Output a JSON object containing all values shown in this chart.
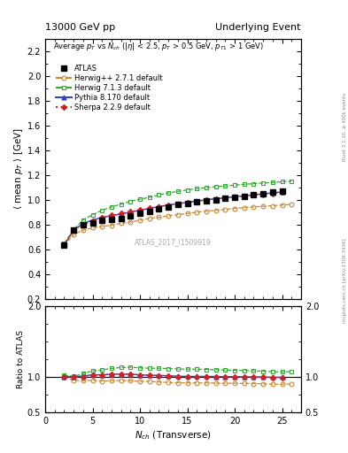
{
  "title_left": "13000 GeV pp",
  "title_right": "Underlying Event",
  "ylabel_main": "$\\langle$ mean $p_T$ $\\rangle$ [GeV]",
  "ylabel_ratio": "Ratio to ATLAS",
  "xlabel": "$N_{ch}$ (Transverse)",
  "right_label1": "Rivet 3.1.10, ≥ 400k events",
  "right_label2": "mcplots.cern.ch [arXiv:1306.3436]",
  "watermark": "ATLAS_2017_I1509919",
  "panel_title": "Average $p_T$ vs $N_{ch}$ ($|\\eta|$ < 2.5, $p_T$ > 0.5 GeV, $p_{T1}$ > 1 GeV)",
  "ylim_main": [
    0.2,
    2.3
  ],
  "ylim_ratio": [
    0.5,
    2.0
  ],
  "xlim": [
    0,
    27
  ],
  "atlas_x": [
    2,
    3,
    4,
    5,
    6,
    7,
    8,
    9,
    10,
    11,
    12,
    13,
    14,
    15,
    16,
    17,
    18,
    19,
    20,
    21,
    22,
    23,
    24,
    25
  ],
  "atlas_y": [
    0.633,
    0.755,
    0.798,
    0.812,
    0.832,
    0.84,
    0.852,
    0.868,
    0.89,
    0.908,
    0.926,
    0.942,
    0.96,
    0.972,
    0.983,
    0.992,
    1.002,
    1.012,
    1.022,
    1.03,
    1.04,
    1.05,
    1.06,
    1.068
  ],
  "herwig271_x": [
    2,
    3,
    4,
    5,
    6,
    7,
    8,
    9,
    10,
    11,
    12,
    13,
    14,
    15,
    16,
    17,
    18,
    19,
    20,
    21,
    22,
    23,
    24,
    25,
    26
  ],
  "herwig271_y": [
    0.633,
    0.72,
    0.755,
    0.775,
    0.785,
    0.795,
    0.81,
    0.82,
    0.835,
    0.85,
    0.86,
    0.87,
    0.88,
    0.89,
    0.9,
    0.908,
    0.915,
    0.922,
    0.93,
    0.937,
    0.942,
    0.948,
    0.952,
    0.958,
    0.963
  ],
  "herwig713_x": [
    2,
    3,
    4,
    5,
    6,
    7,
    8,
    9,
    10,
    11,
    12,
    13,
    14,
    15,
    16,
    17,
    18,
    19,
    20,
    21,
    22,
    23,
    24,
    25,
    26
  ],
  "herwig713_y": [
    0.65,
    0.76,
    0.838,
    0.88,
    0.915,
    0.942,
    0.965,
    0.988,
    1.005,
    1.02,
    1.04,
    1.055,
    1.068,
    1.08,
    1.09,
    1.098,
    1.105,
    1.112,
    1.118,
    1.125,
    1.13,
    1.135,
    1.14,
    1.145,
    1.15
  ],
  "pythia_x": [
    2,
    3,
    4,
    5,
    6,
    7,
    8,
    9,
    10,
    11,
    12,
    13,
    14,
    15,
    16,
    17,
    18,
    19,
    20,
    21,
    22,
    23,
    24,
    25
  ],
  "pythia_y": [
    0.634,
    0.758,
    0.808,
    0.838,
    0.858,
    0.872,
    0.886,
    0.9,
    0.916,
    0.93,
    0.946,
    0.958,
    0.97,
    0.98,
    0.99,
    1.0,
    1.008,
    1.016,
    1.025,
    1.032,
    1.04,
    1.048,
    1.056,
    1.064
  ],
  "sherpa_x": [
    2,
    3,
    4,
    5,
    6,
    7,
    8,
    9,
    10,
    11,
    12,
    13,
    14,
    15,
    16,
    17,
    18,
    19,
    20,
    21,
    22,
    23,
    24,
    25
  ],
  "sherpa_y": [
    0.634,
    0.755,
    0.8,
    0.83,
    0.858,
    0.875,
    0.89,
    0.905,
    0.918,
    0.932,
    0.944,
    0.956,
    0.966,
    0.978,
    0.988,
    0.998,
    1.008,
    1.016,
    1.023,
    1.03,
    1.038,
    1.045,
    1.052,
    1.06
  ],
  "herwig271_ratio": [
    1.0,
    0.954,
    0.946,
    0.955,
    0.943,
    0.946,
    0.95,
    0.945,
    0.938,
    0.937,
    0.928,
    0.922,
    0.917,
    0.916,
    0.915,
    0.915,
    0.913,
    0.911,
    0.91,
    0.909,
    0.906,
    0.903,
    0.898,
    0.897,
    0.901
  ],
  "herwig713_ratio": [
    1.027,
    1.007,
    1.05,
    1.084,
    1.1,
    1.121,
    1.133,
    1.138,
    1.129,
    1.123,
    1.123,
    1.119,
    1.112,
    1.111,
    1.109,
    1.107,
    1.103,
    1.099,
    1.094,
    1.091,
    1.087,
    1.081,
    1.075,
    1.071,
    1.077
  ],
  "pythia_ratio": [
    1.002,
    1.004,
    1.013,
    1.032,
    1.031,
    1.038,
    1.04,
    1.037,
    1.029,
    1.024,
    1.022,
    1.017,
    1.01,
    1.008,
    1.007,
    1.008,
    1.006,
    1.004,
    1.003,
    1.002,
    1.0,
    0.998,
    0.996,
    0.996
  ],
  "sherpa_ratio": [
    1.002,
    1.0,
    1.003,
    1.022,
    1.031,
    1.042,
    1.044,
    1.043,
    1.031,
    1.026,
    1.019,
    1.015,
    1.006,
    1.006,
    1.005,
    1.006,
    1.006,
    1.004,
    1.001,
    1.0,
    0.998,
    0.995,
    0.991,
    0.992
  ],
  "color_atlas": "#000000",
  "color_herwig271": "#cc8833",
  "color_herwig713": "#33aa33",
  "color_pythia": "#3344cc",
  "color_sherpa": "#cc2222"
}
